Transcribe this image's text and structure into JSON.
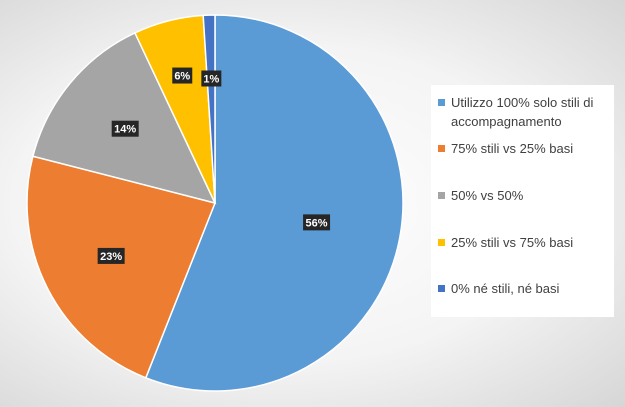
{
  "chart_data": {
    "type": "pie",
    "title": "",
    "categories": [
      "Utilizzo 100% solo stili di accompagnamento",
      "75% stili vs 25% basi",
      "50% vs 50%",
      "25% stili vs 75% basi",
      "0% né stili, né basi"
    ],
    "values": [
      56,
      23,
      14,
      6,
      1
    ],
    "data_labels": [
      "56%",
      "23%",
      "14%",
      "6%",
      "1%"
    ],
    "colors": [
      "#5b9bd5",
      "#ed7d31",
      "#a5a5a5",
      "#ffc000",
      "#4472c4"
    ],
    "legend_placement": "right"
  }
}
